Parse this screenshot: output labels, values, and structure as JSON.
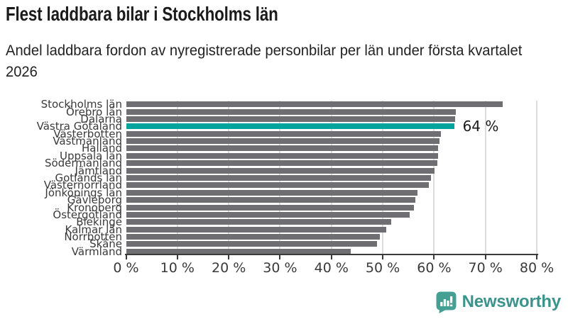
{
  "header": {
    "title": "Flest laddbara bilar i Stockholms län",
    "subtitle": "Andel laddbara fordon av nyregistrerade personbilar per län under första kvartalet 2026"
  },
  "chart_data": {
    "type": "bar",
    "orientation": "horizontal",
    "title": "Flest laddbara bilar i Stockholms län",
    "subtitle": "Andel laddbara fordon av nyregistrerade personbilar per län under första kvartalet 2026",
    "unit": "%",
    "categories": [
      "Stockholms län",
      "Örebro län",
      "Dalarna",
      "Västra Götaland",
      "Västerbotten",
      "Västmanland",
      "Halland",
      "Uppsala län",
      "Södermanland",
      "Jämtland",
      "Gotlands län",
      "Västernorrland",
      "Jönköpings län",
      "Gävleborg",
      "Kronoberg",
      "Östergötland",
      "Blekinge",
      "Kalmar län",
      "Norrbotten",
      "Skåne",
      "Värmland"
    ],
    "values": [
      73.4,
      64.3,
      64.1,
      63.9,
      61.3,
      61.0,
      60.8,
      60.8,
      60.7,
      60.1,
      59.4,
      59.0,
      56.8,
      56.3,
      56.1,
      55.3,
      51.7,
      50.7,
      49.4,
      48.9,
      43.7
    ],
    "highlight": {
      "category": "Västra Götaland",
      "index": 3,
      "label": "64 %"
    },
    "xlim": [
      0,
      80
    ],
    "x_ticks": [
      0,
      10,
      20,
      30,
      40,
      50,
      60,
      70,
      80
    ],
    "x_tick_labels": [
      "0 %",
      "10 %",
      "20 %",
      "30 %",
      "40 %",
      "50 %",
      "60 %",
      "70 %",
      "80 %"
    ],
    "grid": "vertical",
    "legend": "none",
    "colors": {
      "bar": "#6e6e73",
      "highlight": "#00a49c",
      "gridline": "#dcdcdc",
      "axis": "#3a3a3a"
    }
  },
  "footer": {
    "brand": "Newsworthy",
    "logo_icon": "bar-chart-speech-bubble-icon",
    "brand_color": "#3b938c",
    "icon_color": "#45a094"
  }
}
